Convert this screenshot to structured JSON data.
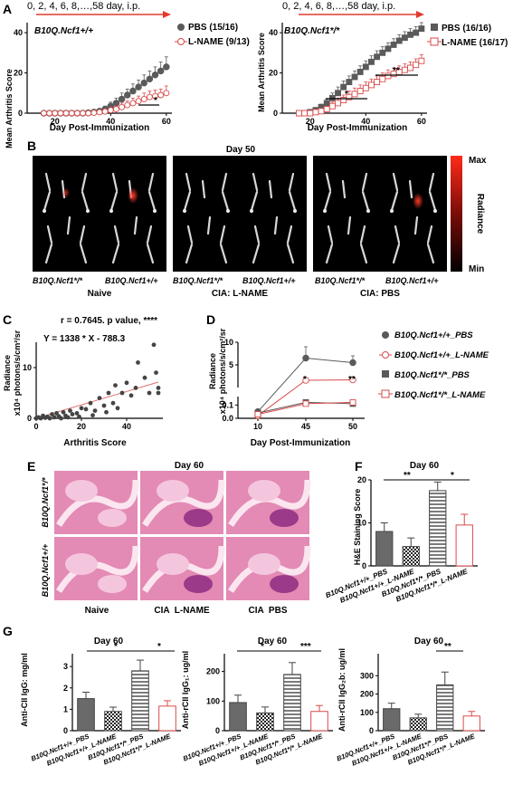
{
  "panels": {
    "A": "A",
    "B": "B",
    "C": "C",
    "D": "D",
    "E": "E",
    "F": "F",
    "G": "G"
  },
  "panel_a": {
    "dosing_text": "0, 2, 4, 6, 8,…,58 day, i.p.",
    "left_title": "B10Q.Ncf1+/+",
    "right_title": "B10Q.Ncf1*/*",
    "ylabel": "Mean Arthritis Score",
    "xlabel": "Day Post-Immunization",
    "left_sig": "*",
    "right_sig": [
      "*",
      "**"
    ]
  },
  "panel_b": {
    "title": "Day 50",
    "labels": [
      "B10Q.Ncf1*/*",
      "B10Q.Ncf1+/+",
      "B10Q.Ncf1*/*",
      "B10Q.Ncf1+/+",
      "B10Q.Ncf1*/*",
      "B10Q.Ncf1+/+"
    ],
    "groups": [
      "Naive",
      "CIA: L-NAME",
      "CIA: PBS"
    ],
    "colorbar": {
      "max": "Max",
      "min": "Min",
      "label": "Radiance"
    }
  },
  "panel_c": {
    "stat": "r = 0.7645. p value, ****",
    "equation": "Y = 1338 * X - 788.3",
    "ylabel1": "Radiance",
    "ylabel2": "x10⁴ photons/s/cm²/sr",
    "xlabel": "Arthritis Score"
  },
  "panel_d": {
    "ylabel1": "Radiance",
    "ylabel2": "x10⁴ photons/s/cm²/sr",
    "xlabel": "Day Post-Immunization",
    "sig_45": "*",
    "sig_50": "**"
  },
  "panel_e": {
    "title": "Day 60",
    "row_labels": [
      "B10Q.Ncf1*/*",
      "B10Q.Ncf1+/+"
    ],
    "col_labels": [
      "Naive",
      "CIA  L-NAME",
      "CIA  PBS"
    ]
  },
  "panel_f": {
    "title": "Day 60",
    "ylabel": "H&E Staining Score",
    "sig": [
      "**",
      "*"
    ]
  },
  "panel_g": {
    "titles": [
      "Day 60",
      "Day 60",
      "Day 60"
    ],
    "ylabels": [
      "Anti-CII IgG: mg/ml",
      "Anti-rCII IgG₁: ug/ml",
      "Anti-rCII IgG₂b: ug/ml"
    ],
    "sig1": [
      "*",
      "*"
    ],
    "sig2": [
      "*",
      "***"
    ],
    "sig3": [
      "**"
    ]
  },
  "colors": {
    "filled": "#5a5a5a",
    "open": "#d94a4a",
    "red_arrow": "#e23b2f",
    "he_pink": "#e38ab5"
  },
  "chart_data": [
    {
      "type": "line",
      "title": "B10Q.Ncf1+/+",
      "xlabel": "Day Post-Immunization",
      "ylabel": "Mean Arthritis Score",
      "ylim": [
        0,
        45
      ],
      "xlim": [
        10,
        62
      ],
      "x": [
        16,
        18,
        20,
        22,
        24,
        26,
        28,
        30,
        32,
        34,
        36,
        38,
        40,
        42,
        44,
        46,
        48,
        50,
        52,
        54,
        56,
        58,
        60
      ],
      "series": [
        {
          "name": "PBS (15/16)",
          "values": [
            0,
            0,
            0,
            0,
            0,
            0,
            0,
            0,
            0.2,
            0.5,
            1,
            2,
            3.5,
            5,
            7,
            9,
            11,
            13,
            15,
            17,
            19,
            21,
            23
          ],
          "err": [
            0,
            0,
            0,
            0,
            0,
            0,
            0,
            0,
            0.5,
            0.6,
            1,
            1.5,
            2,
            2.5,
            3,
            3,
            3.5,
            3.5,
            4,
            4,
            4,
            4.5,
            5
          ]
        },
        {
          "name": "L-NAME (9/13)",
          "values": [
            0,
            0,
            0,
            0,
            0,
            0,
            0,
            0,
            0,
            0.2,
            0.5,
            0.8,
            1.5,
            2,
            3,
            4,
            5,
            6,
            7,
            8,
            8.5,
            9,
            10
          ],
          "err": [
            0,
            0,
            0,
            0,
            0,
            0,
            0,
            0,
            0,
            0.3,
            0.5,
            0.8,
            1,
            1.5,
            2,
            2,
            2.5,
            2.5,
            3,
            3,
            3,
            3,
            3.5
          ]
        }
      ]
    },
    {
      "type": "line",
      "title": "B10Q.Ncf1*/*",
      "xlabel": "Day Post-Immunization",
      "ylabel": "Mean Arthritis Score",
      "ylim": [
        0,
        45
      ],
      "xlim": [
        10,
        62
      ],
      "x": [
        16,
        18,
        20,
        22,
        24,
        26,
        28,
        30,
        32,
        34,
        36,
        38,
        40,
        42,
        44,
        46,
        48,
        50,
        52,
        54,
        56,
        58,
        60
      ],
      "series": [
        {
          "name": "PBS (16/16)",
          "values": [
            0,
            0,
            0.5,
            1.5,
            3,
            5,
            7.5,
            10,
            13,
            15.5,
            18,
            20.5,
            23,
            25.5,
            28,
            30,
            32,
            34,
            36,
            37.5,
            39,
            40,
            42
          ],
          "err": [
            0,
            0,
            0.5,
            1,
            1.5,
            2,
            2.5,
            3,
            3,
            3,
            3,
            3,
            3,
            3,
            3,
            3,
            3,
            3,
            3,
            3,
            3,
            3,
            3
          ]
        },
        {
          "name": "L-NAME (16/17)",
          "values": [
            0,
            0,
            0,
            0.5,
            1,
            2,
            3.5,
            5,
            6.5,
            8,
            9.5,
            11,
            12.5,
            14,
            15.5,
            17,
            18.5,
            19.5,
            20.5,
            21.5,
            22.5,
            24,
            26
          ],
          "err": [
            0,
            0,
            0,
            0.5,
            1,
            1.5,
            2,
            2.5,
            2.5,
            3,
            3,
            3,
            3,
            3,
            3,
            3,
            3,
            3,
            3,
            3,
            3,
            3,
            3
          ]
        }
      ]
    },
    {
      "type": "scatter",
      "xlabel": "Arthritis Score",
      "ylim": [
        0,
        15
      ],
      "xlim": [
        0,
        56
      ],
      "xticks": [
        0,
        20,
        40
      ],
      "yticks": [
        0,
        10
      ],
      "points": [
        [
          0,
          0
        ],
        [
          1,
          0.2
        ],
        [
          2,
          0
        ],
        [
          3,
          0.5
        ],
        [
          4,
          0.1
        ],
        [
          5,
          0.3
        ],
        [
          6,
          0
        ],
        [
          7,
          0.8
        ],
        [
          8,
          0.2
        ],
        [
          9,
          1
        ],
        [
          10,
          0.4
        ],
        [
          11,
          0
        ],
        [
          12,
          1.2
        ],
        [
          13,
          0.5
        ],
        [
          14,
          0.2
        ],
        [
          15,
          1.5
        ],
        [
          16,
          0.8
        ],
        [
          18,
          1
        ],
        [
          19,
          0.3
        ],
        [
          20,
          2
        ],
        [
          22,
          1.8
        ],
        [
          24,
          3
        ],
        [
          25,
          0.6
        ],
        [
          26,
          1.5
        ],
        [
          28,
          4
        ],
        [
          30,
          2.5
        ],
        [
          31,
          1.2
        ],
        [
          32,
          5
        ],
        [
          34,
          3
        ],
        [
          35,
          6.5
        ],
        [
          36,
          2
        ],
        [
          38,
          5
        ],
        [
          40,
          7
        ],
        [
          42,
          4.5
        ],
        [
          44,
          6
        ],
        [
          45,
          11
        ],
        [
          48,
          8
        ],
        [
          50,
          5
        ],
        [
          52,
          14.5
        ],
        [
          53,
          9
        ],
        [
          54,
          5
        ],
        [
          54,
          6
        ]
      ],
      "fit": {
        "slope": 0.1338,
        "intercept": -0.0788
      }
    },
    {
      "type": "line",
      "xlabel": "Day Post-Immunization",
      "categories": [
        "10",
        "45",
        "50"
      ],
      "yticks": [
        0.0,
        0.1,
        5,
        10
      ],
      "series": [
        {
          "name": "B10Q.Ncf1+/+_PBS",
          "values": [
            0.05,
            6.5,
            5.5
          ],
          "err": [
            0.01,
            2.5,
            1.5
          ]
        },
        {
          "name": "B10Q.Ncf1+/+_L-NAME",
          "values": [
            0.02,
            1.6,
            1.7
          ],
          "err": [
            0.005,
            0.3,
            0.2
          ]
        },
        {
          "name": "B10Q.Ncf1*/*_PBS",
          "values": [
            0.04,
            0.12,
            0.11
          ],
          "err": [
            0.01,
            0.01,
            0.01
          ]
        },
        {
          "name": "B10Q.Ncf1*/*_L-NAME",
          "values": [
            0.03,
            0.11,
            0.12
          ],
          "err": [
            0.01,
            0.01,
            0.01
          ]
        }
      ]
    },
    {
      "type": "bar",
      "title": "Day 60",
      "ylabel": "H&E Staining Score",
      "ylim": [
        0,
        20
      ],
      "yticks": [
        0,
        10,
        20
      ],
      "categories": [
        "B10Q.Ncf1+/+_PBS",
        "B10Q.Ncf1+/+_L-NAME",
        "B10Q.Ncf1*/*_PBS",
        "B10Q.Ncf1*/*_L-NAME"
      ],
      "values": [
        8,
        4.5,
        17.5,
        9.5
      ],
      "err": [
        2,
        2,
        2,
        2.5
      ]
    },
    {
      "type": "bar",
      "title": "Day 60",
      "ylabel": "Anti-CII IgG: mg/ml",
      "ylim": [
        0,
        3.6
      ],
      "yticks": [
        0,
        1,
        2,
        3
      ],
      "categories": [
        "B10Q.Ncf1+/+_PBS",
        "B10Q.Ncf1+/+_L-NAME",
        "B10Q.Ncf1*/*_PBS",
        "B10Q.Ncf1*/*_L-NAME"
      ],
      "values": [
        1.5,
        0.9,
        2.8,
        1.15
      ],
      "err": [
        0.3,
        0.2,
        0.5,
        0.25
      ]
    },
    {
      "type": "bar",
      "title": "Day 60",
      "ylabel": "Anti-rCII IgG₁: ug/ml",
      "ylim": [
        0,
        260
      ],
      "yticks": [
        0,
        100,
        200
      ],
      "categories": [
        "B10Q.Ncf1+/+_PBS",
        "B10Q.Ncf1+/+_L-NAME",
        "B10Q.Ncf1*/*_PBS",
        "B10Q.Ncf1*/*_L-NAME"
      ],
      "values": [
        95,
        60,
        190,
        65
      ],
      "err": [
        25,
        20,
        40,
        20
      ]
    },
    {
      "type": "bar",
      "title": "Day 60",
      "ylabel": "Anti-rCII IgG₂b: ug/ml",
      "ylim": [
        0,
        420
      ],
      "yticks": [
        0,
        100,
        200,
        300
      ],
      "categories": [
        "B10Q.Ncf1+/+_PBS",
        "B10Q.Ncf1+/+_L-NAME",
        "B10Q.Ncf1*/*_PBS",
        "B10Q.Ncf1*/*_L-NAME"
      ],
      "values": [
        120,
        70,
        250,
        80
      ],
      "err": [
        30,
        20,
        70,
        25
      ]
    }
  ]
}
